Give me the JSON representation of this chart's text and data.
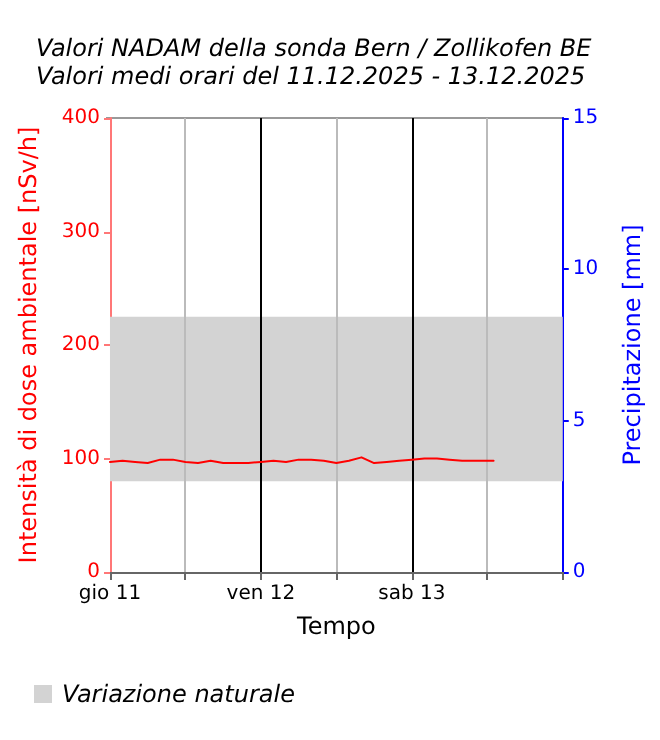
{
  "chart_data": {
    "type": "line",
    "title": "Valori NADAM della sonda Bern / Zollikofen BE",
    "subtitle": "Valori medi orari del 11.12.2025 - 13.12.2025",
    "xlabel": "Tempo",
    "ylabel": "Intensità di dose ambientale [nSv/h]",
    "y2label": "Precipitazione [mm]",
    "x": [
      "2025-12-11T00:00",
      "2025-12-11T02:00",
      "2025-12-11T04:00",
      "2025-12-11T06:00",
      "2025-12-11T08:00",
      "2025-12-11T10:00",
      "2025-12-11T12:00",
      "2025-12-11T14:00",
      "2025-12-11T16:00",
      "2025-12-11T18:00",
      "2025-12-11T20:00",
      "2025-12-11T22:00",
      "2025-12-12T00:00",
      "2025-12-12T02:00",
      "2025-12-12T04:00",
      "2025-12-12T06:00",
      "2025-12-12T08:00",
      "2025-12-12T10:00",
      "2025-12-12T12:00",
      "2025-12-12T14:00",
      "2025-12-12T16:00",
      "2025-12-12T18:00",
      "2025-12-12T20:00",
      "2025-12-12T22:00",
      "2025-12-13T00:00",
      "2025-12-13T02:00",
      "2025-12-13T04:00",
      "2025-12-13T06:00",
      "2025-12-13T08:00",
      "2025-12-13T10:00",
      "2025-12-13T12:00",
      "2025-12-13T13:00"
    ],
    "series": [
      {
        "color": "#ff0000",
        "values": [
          97,
          98,
          97,
          96,
          99,
          99,
          97,
          96,
          98,
          96,
          96,
          96,
          97,
          98,
          97,
          99,
          99,
          98,
          96,
          98,
          101,
          96,
          97,
          98,
          99,
          100,
          100,
          99,
          98,
          98,
          98,
          98
        ]
      }
    ],
    "xlim": [
      "2025-12-11T00:00",
      "2025-12-14T00:00"
    ],
    "xticks": [
      {
        "value": "2025-12-11T00:00",
        "label": "gio 11"
      },
      {
        "value": "2025-12-11T12:00",
        "label": null
      },
      {
        "value": "2025-12-12T00:00",
        "label": "ven 12"
      },
      {
        "value": "2025-12-12T12:00",
        "label": null
      },
      {
        "value": "2025-12-13T00:00",
        "label": "sab 13"
      },
      {
        "value": "2025-12-13T12:00",
        "label": null
      },
      {
        "value": "2025-12-14T00:00",
        "label": null
      }
    ],
    "ylim": [
      0,
      400
    ],
    "yticks": [
      0,
      100,
      200,
      300,
      400
    ],
    "y2lim": [
      0,
      15
    ],
    "y2ticks": [
      0,
      5,
      10,
      15
    ],
    "bands": [
      {
        "axis": "y",
        "from": 80,
        "to": 225,
        "label": "Variazione naturale",
        "color": "#d3d3d3"
      }
    ],
    "grid": "x",
    "legend": "bottom left",
    "marker": "none",
    "line_style": "solid"
  }
}
